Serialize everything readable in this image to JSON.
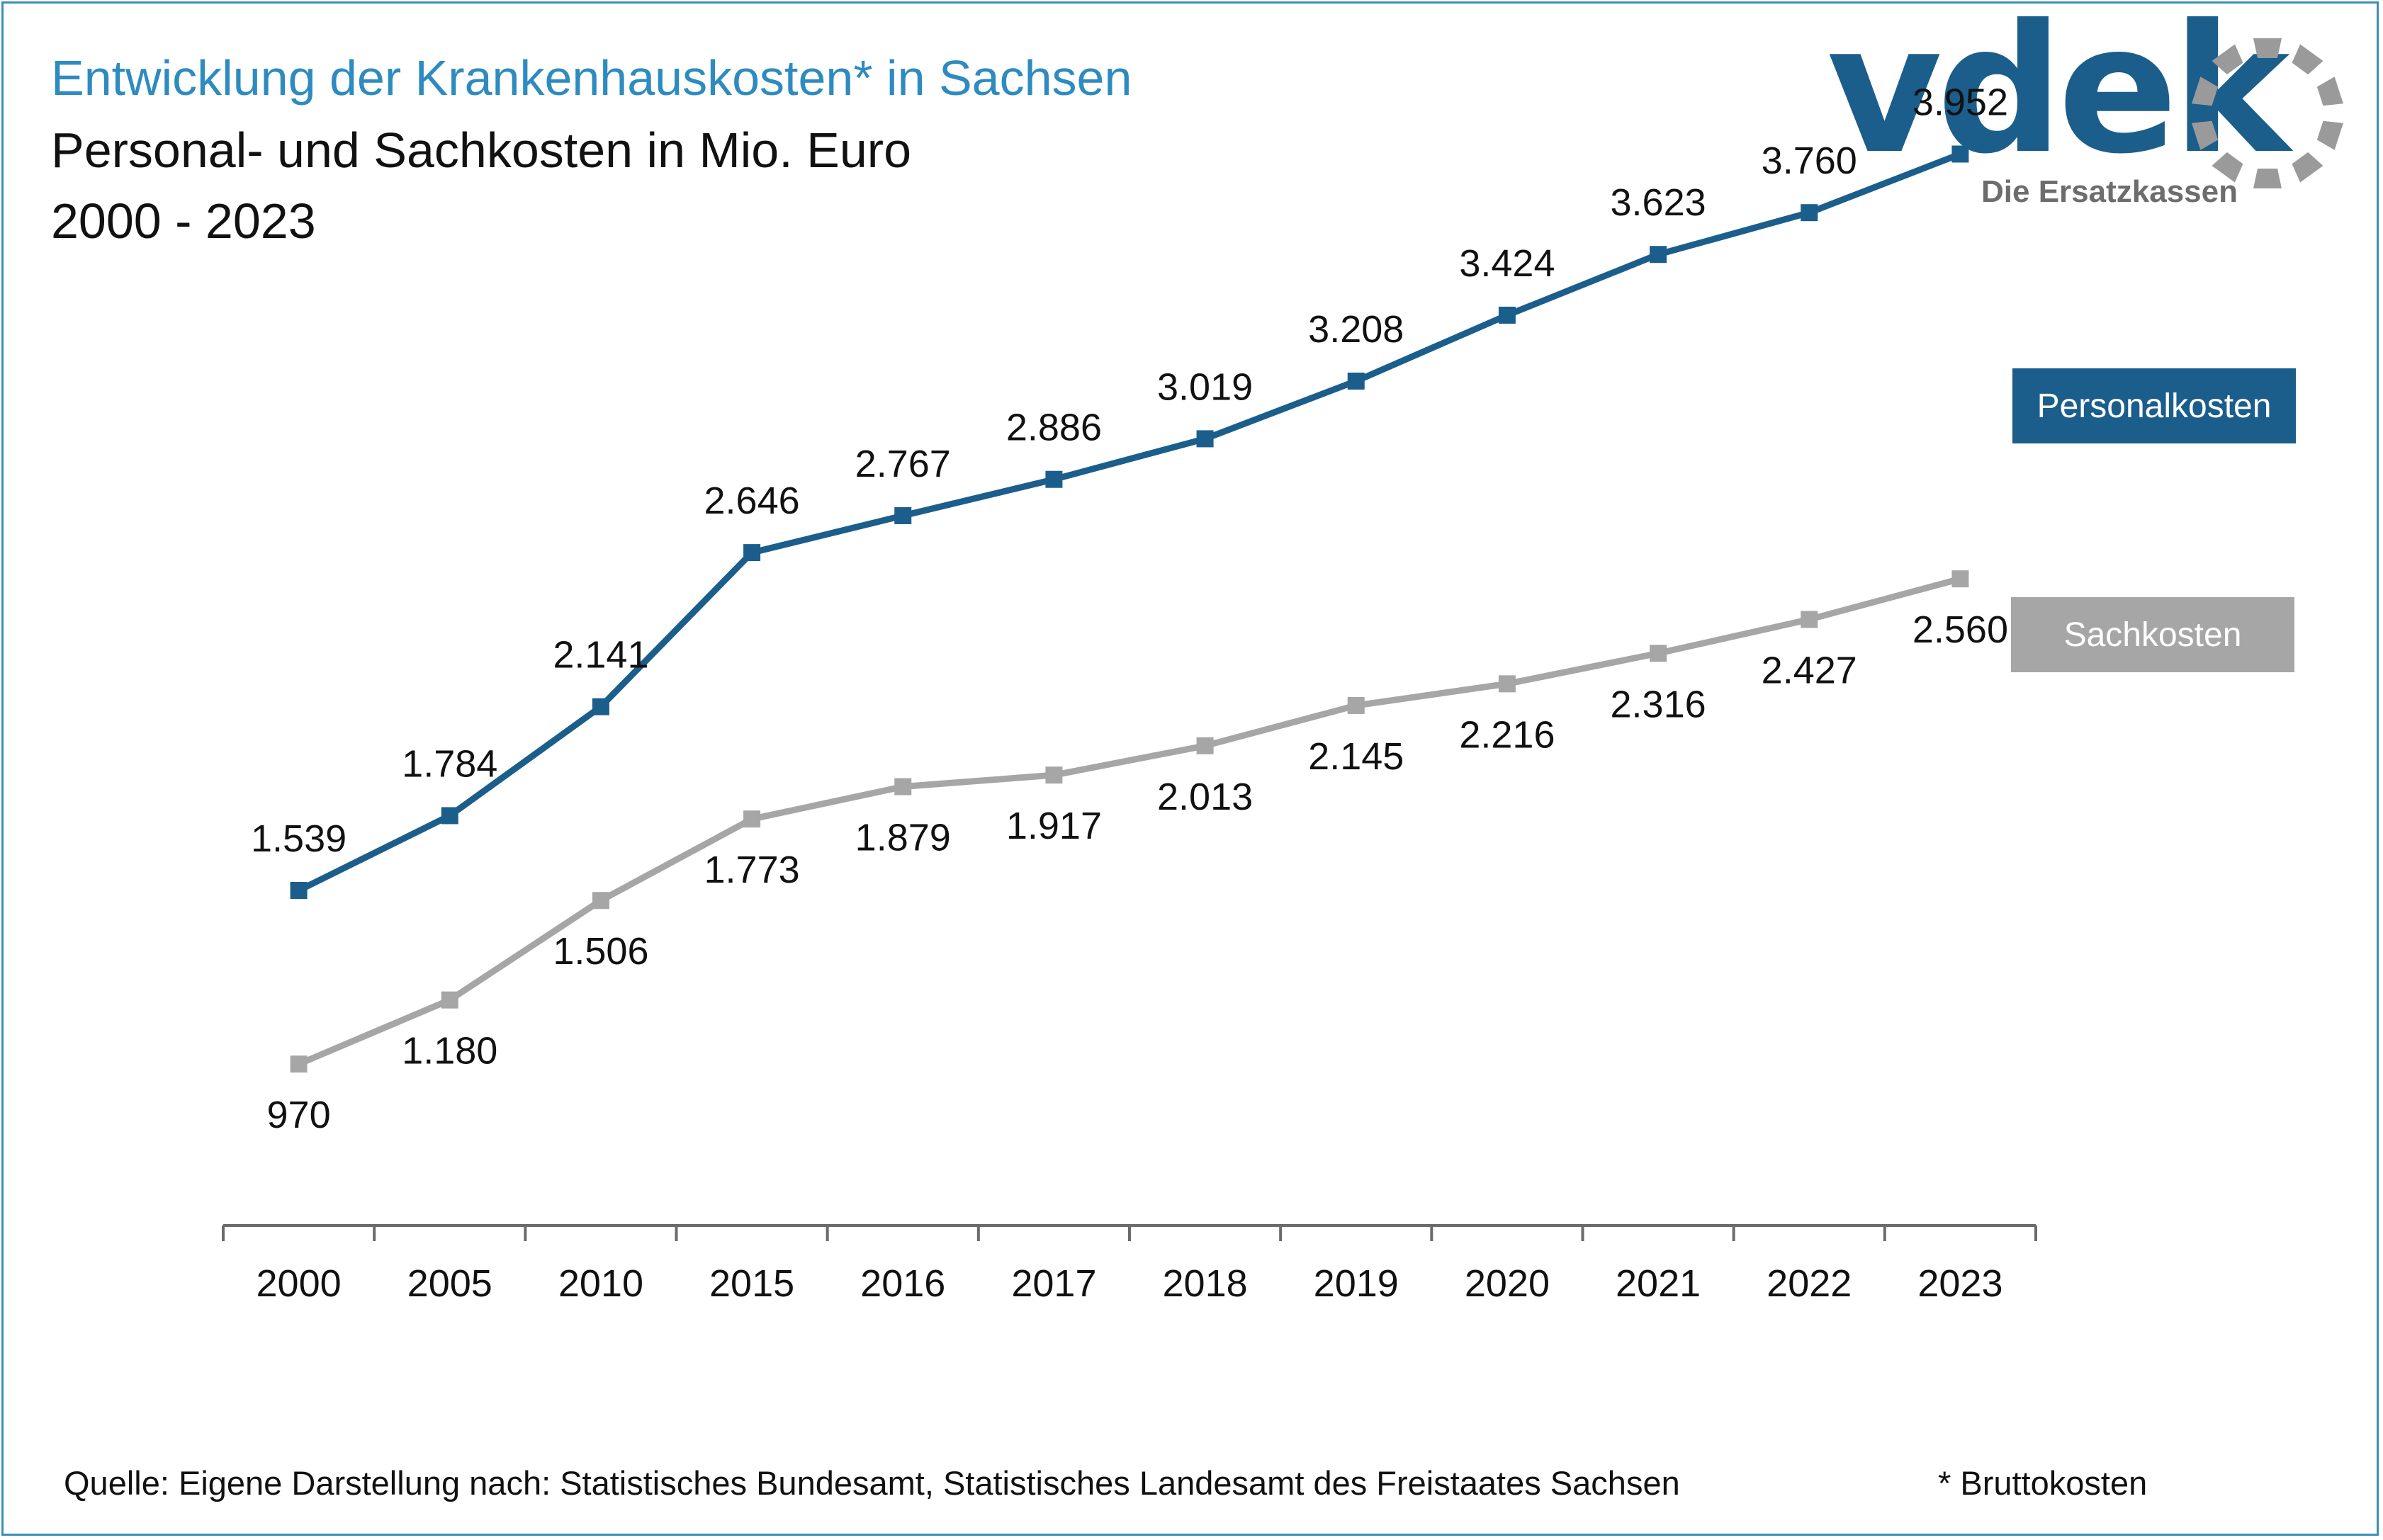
{
  "header": {
    "title": "Entwicklung der Krankenhauskosten* in Sachsen",
    "subtitle": "Personal- und Sachkosten in Mio. Euro",
    "period": "2000 - 2023"
  },
  "logo": {
    "wordmark": "vdek",
    "tagline": "Die Ersatzkassen",
    "color": "#1b5e8c"
  },
  "chart_data": {
    "type": "line",
    "title": "Entwicklung der Krankenhauskosten* in Sachsen",
    "subtitle": "Personal- und Sachkosten in Mio. Euro",
    "xlabel": "",
    "ylabel": "",
    "categories": [
      "2000",
      "2005",
      "2010",
      "2015",
      "2016",
      "2017",
      "2018",
      "2019",
      "2020",
      "2021",
      "2022",
      "2023"
    ],
    "series": [
      {
        "name": "Personalkosten",
        "color": "#1b5e8c",
        "values": [
          1539,
          1784,
          2141,
          2646,
          2767,
          2886,
          3019,
          3208,
          3424,
          3623,
          3760,
          3952
        ],
        "labels": [
          "1.539",
          "1.784",
          "2.141",
          "2.646",
          "2.767",
          "2.886",
          "3.019",
          "3.208",
          "3.424",
          "3.623",
          "3.760",
          "3.952"
        ]
      },
      {
        "name": "Sachkosten",
        "color": "#a6a6a6",
        "values": [
          970,
          1180,
          1506,
          1773,
          1879,
          1917,
          2013,
          2145,
          2216,
          2316,
          2427,
          2560
        ],
        "labels": [
          "970",
          "1.180",
          "1.506",
          "1.773",
          "1.879",
          "1.917",
          "2.013",
          "2.145",
          "2.216",
          "2.316",
          "2.427",
          "2.560"
        ]
      }
    ],
    "grid": false,
    "legend": "right"
  },
  "footer": {
    "source": "Quelle: Eigene Darstellung nach: Statistisches Bundesamt, Statistisches Landesamt des Freistaates Sachsen",
    "note": "* Bruttokosten"
  }
}
